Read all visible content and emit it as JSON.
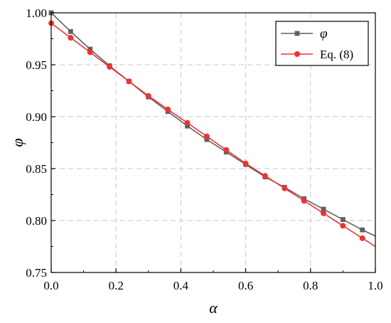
{
  "chart_data": {
    "type": "line",
    "xlabel": "α",
    "ylabel": "φ",
    "xlim": [
      0.0,
      1.0
    ],
    "ylim": [
      0.75,
      1.0
    ],
    "x_ticks": [
      "0.0",
      "0.2",
      "0.4",
      "0.6",
      "0.8",
      "1.0"
    ],
    "y_ticks": [
      "0.75",
      "0.80",
      "0.85",
      "0.90",
      "0.95",
      "1.00"
    ],
    "grid": true,
    "legend_position": "top-right",
    "series": [
      {
        "name": "φ",
        "color": "#606060",
        "marker": "square",
        "x": [
          0.0,
          0.06,
          0.12,
          0.18,
          0.24,
          0.3,
          0.36,
          0.42,
          0.48,
          0.54,
          0.6,
          0.66,
          0.72,
          0.78,
          0.84,
          0.9,
          0.96,
          1.0
        ],
        "y": [
          1.0,
          0.982,
          0.965,
          0.949,
          0.934,
          0.919,
          0.905,
          0.891,
          0.878,
          0.866,
          0.854,
          0.842,
          0.832,
          0.821,
          0.811,
          0.801,
          0.791,
          0.785
        ]
      },
      {
        "name": "Eq. (8)",
        "color": "#ee3333",
        "marker": "circle",
        "x": [
          0.0,
          0.06,
          0.12,
          0.18,
          0.24,
          0.3,
          0.36,
          0.42,
          0.48,
          0.54,
          0.6,
          0.66,
          0.72,
          0.78,
          0.84,
          0.9,
          0.96,
          1.0
        ],
        "y": [
          0.99,
          0.976,
          0.962,
          0.948,
          0.934,
          0.92,
          0.907,
          0.894,
          0.881,
          0.868,
          0.855,
          0.843,
          0.831,
          0.819,
          0.807,
          0.795,
          0.783,
          0.775
        ]
      }
    ]
  }
}
